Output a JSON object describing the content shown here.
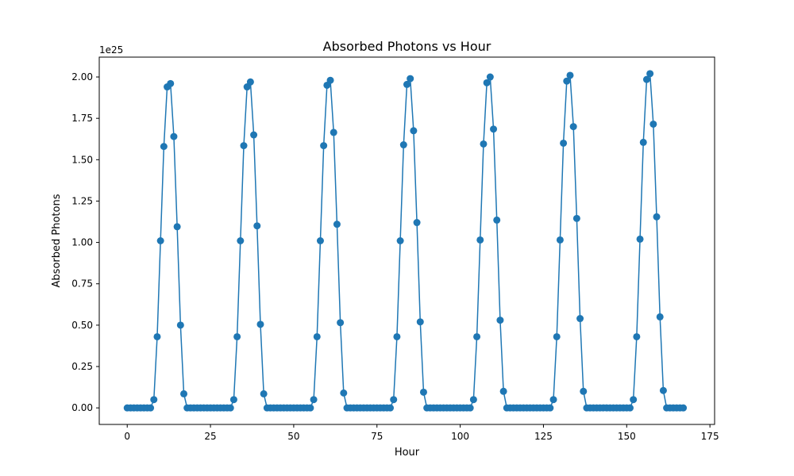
{
  "chart_data": {
    "type": "line",
    "title": "Absorbed Photons vs Hour",
    "xlabel": "Hour",
    "ylabel": "Absorbed Photons",
    "y_scale_label": "1e25",
    "xlim": [
      -8.4,
      176.4
    ],
    "ylim": [
      -0.1,
      2.12
    ],
    "xticks": [
      0,
      25,
      50,
      75,
      100,
      125,
      150,
      175
    ],
    "yticks": [
      0.0,
      0.25,
      0.5,
      0.75,
      1.0,
      1.25,
      1.5,
      1.75,
      2.0
    ],
    "ytick_labels": [
      "0.00",
      "0.25",
      "0.50",
      "0.75",
      "1.00",
      "1.25",
      "1.50",
      "1.75",
      "2.00"
    ],
    "grid": false,
    "legend": false,
    "marker": "circle",
    "series": [
      {
        "color": "#1f77b4",
        "x": [
          0,
          1,
          2,
          3,
          4,
          5,
          6,
          7,
          8,
          9,
          10,
          11,
          12,
          13,
          14,
          15,
          16,
          17,
          18,
          19,
          20,
          21,
          22,
          23,
          24,
          25,
          26,
          27,
          28,
          29,
          30,
          31,
          32,
          33,
          34,
          35,
          36,
          37,
          38,
          39,
          40,
          41,
          42,
          43,
          44,
          45,
          46,
          47,
          48,
          49,
          50,
          51,
          52,
          53,
          54,
          55,
          56,
          57,
          58,
          59,
          60,
          61,
          62,
          63,
          64,
          65,
          66,
          67,
          68,
          69,
          70,
          71,
          72,
          73,
          74,
          75,
          76,
          77,
          78,
          79,
          80,
          81,
          82,
          83,
          84,
          85,
          86,
          87,
          88,
          89,
          90,
          91,
          92,
          93,
          94,
          95,
          96,
          97,
          98,
          99,
          100,
          101,
          102,
          103,
          104,
          105,
          106,
          107,
          108,
          109,
          110,
          111,
          112,
          113,
          114,
          115,
          116,
          117,
          118,
          119,
          120,
          121,
          122,
          123,
          124,
          125,
          126,
          127,
          128,
          129,
          130,
          131,
          132,
          133,
          134,
          135,
          136,
          137,
          138,
          139,
          140,
          141,
          142,
          143,
          144,
          145,
          146,
          147,
          148,
          149,
          150,
          151,
          152,
          153,
          154,
          155,
          156,
          157,
          158,
          159,
          160,
          161,
          162,
          163,
          164,
          165,
          166,
          167
        ],
        "y": [
          0,
          0,
          0,
          0,
          0,
          0,
          0,
          0,
          0.05,
          0.43,
          1.01,
          1.58,
          1.94,
          1.96,
          1.64,
          1.095,
          0.5,
          0.085,
          0,
          0,
          0,
          0,
          0,
          0,
          0,
          0,
          0,
          0,
          0,
          0,
          0,
          0,
          0.05,
          0.43,
          1.01,
          1.585,
          1.94,
          1.97,
          1.65,
          1.1,
          0.505,
          0.085,
          0,
          0,
          0,
          0,
          0,
          0,
          0,
          0,
          0,
          0,
          0,
          0,
          0,
          0,
          0.05,
          0.43,
          1.01,
          1.585,
          1.95,
          1.98,
          1.665,
          1.11,
          0.515,
          0.09,
          0,
          0,
          0,
          0,
          0,
          0,
          0,
          0,
          0,
          0,
          0,
          0,
          0,
          0,
          0.05,
          0.43,
          1.01,
          1.59,
          1.955,
          1.99,
          1.675,
          1.12,
          0.52,
          0.095,
          0,
          0,
          0,
          0,
          0,
          0,
          0,
          0,
          0,
          0,
          0,
          0,
          0,
          0,
          0.05,
          0.43,
          1.015,
          1.595,
          1.965,
          2.0,
          1.685,
          1.135,
          0.53,
          0.1,
          0,
          0,
          0,
          0,
          0,
          0,
          0,
          0,
          0,
          0,
          0,
          0,
          0,
          0,
          0.05,
          0.43,
          1.015,
          1.6,
          1.975,
          2.01,
          1.7,
          1.145,
          0.54,
          0.1,
          0,
          0,
          0,
          0,
          0,
          0,
          0,
          0,
          0,
          0,
          0,
          0,
          0,
          0,
          0.05,
          0.43,
          1.02,
          1.605,
          1.985,
          2.02,
          1.715,
          1.155,
          0.55,
          0.105,
          0,
          0,
          0,
          0,
          0,
          0
        ]
      }
    ]
  }
}
